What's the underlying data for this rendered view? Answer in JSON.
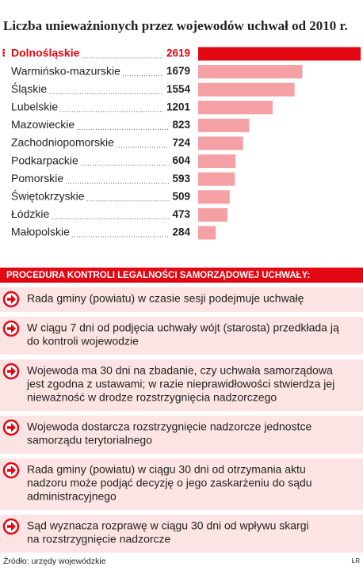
{
  "chart_data": {
    "type": "bar",
    "orientation": "horizontal",
    "title": "Liczba unieważnionych przez wojewodów uchwał od 2010 r.",
    "categories": [
      "Dolnośląskie",
      "Warmińsko-mazurskie",
      "Śląskie",
      "Lubelskie",
      "Mazowieckie",
      "Zachodniopomorskie",
      "Podkarpackie",
      "Pomorskie",
      "Świętokrzyskie",
      "Łódzkie",
      "Małopolskie"
    ],
    "values": [
      2619,
      1679,
      1554,
      1201,
      823,
      724,
      604,
      593,
      509,
      473,
      284
    ],
    "colors": [
      "#e30613",
      "#f5a0a5",
      "#f5a0a5",
      "#f5a0a5",
      "#f5a0a5",
      "#f5a0a5",
      "#f5a0a5",
      "#f5a0a5",
      "#f5a0a5",
      "#f5a0a5",
      "#f5a0a5"
    ]
  },
  "procedure": {
    "title": "PROCEDURA KONTROLI LEGALNOŚCI SAMORZĄDOWEJ UCHWAŁY:",
    "steps": [
      [
        "Rada gminy (powiatu) w czasie sesji podejmuje uchwałę"
      ],
      [
        "W ciągu 7 dni od podjęcia uchwały wójt (starosta) przedkłada ją",
        "do kontroli wojewodzie"
      ],
      [
        "Wojewoda ma 30 dni na zbadanie, czy uchwała samorządowa",
        "jest zgodna z ustawami; w razie nieprawidłowości stwierdza jej",
        "nieważność w drodze rozstrzygnięcia nadzorczego"
      ],
      [
        "Wojewoda dostarcza rozstrzygnięcie nadzorcze jednostce",
        "samorządu terytorialnego"
      ],
      [
        "Rada gminy (powiatu) w ciągu 30 dni od otrzymania aktu",
        "nadzoru może podjąć decyzję o jego zaskarżeniu do sądu",
        "administracyjnego"
      ],
      [
        "Sąd wyznacza rozprawę w ciągu 30 dni od wpływu skargi",
        "na rozstrzygnięcie nadzorcze"
      ]
    ]
  },
  "source": "Źródło: urzędy wojewódzkie",
  "credit": "ŁR"
}
